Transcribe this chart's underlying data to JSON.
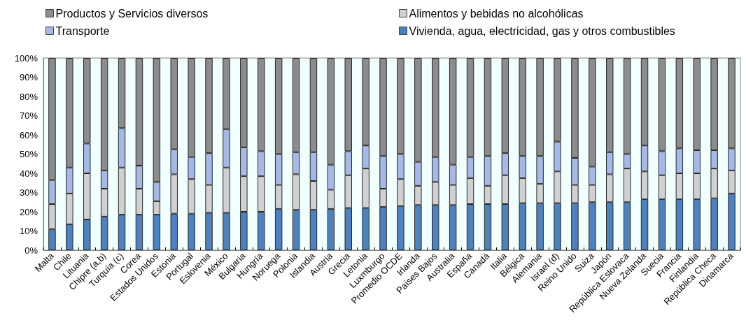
{
  "chart_data": {
    "type": "bar",
    "stacked": true,
    "legend": "top",
    "categories": [
      "Malta",
      "Chile",
      "Lituania",
      "Chipre (a,b)",
      "Turquía (c)",
      "Corea",
      "Estados Unidos",
      "Estonia",
      "Portugal",
      "Eslovenia",
      "México",
      "Bulgaria",
      "Hungría",
      "Noruega",
      "Polonia",
      "Islandia",
      "Austria",
      "Grecia",
      "Letonia",
      "Luxmburgo",
      "Promedio OCDE",
      "Irlanda",
      "Países Bajos",
      "Australia",
      "España",
      "Canadá",
      "Italia",
      "Bélgica",
      "Alemania",
      "Israel (d)",
      "Reino Unido",
      "Suiza",
      "Japón",
      "República Eslovaca",
      "Nueva Zelanda",
      "Suecia",
      "Francia",
      "Finlandia",
      "República Checa",
      "Dinamarca"
    ],
    "series": [
      {
        "name": "Vivienda, agua, electricidad, gas y otros combustibles",
        "color": "#4f81bd",
        "values": [
          11,
          13.5,
          16,
          17.5,
          18.5,
          18.5,
          18.5,
          19,
          19,
          19.5,
          19.5,
          20,
          20,
          21.5,
          21,
          21,
          21.5,
          22,
          22,
          22.5,
          23,
          23.5,
          23.5,
          23.5,
          24,
          24,
          24,
          24.5,
          24.5,
          24.5,
          24.5,
          25,
          25,
          25,
          26.5,
          26.5,
          26.5,
          26.5,
          27,
          29.5
        ]
      },
      {
        "name": "Alimentos y bebidas no alcohólicas",
        "color": "#d0d0d0",
        "values": [
          13,
          16,
          24,
          14.5,
          24.5,
          13.5,
          7,
          20.5,
          18,
          14.5,
          23.5,
          18.5,
          18.5,
          12.5,
          18.5,
          15,
          10,
          17,
          20.5,
          9.5,
          14,
          10,
          12,
          10.5,
          13.5,
          9.5,
          15,
          13,
          10,
          16.5,
          9.5,
          9,
          14.5,
          17.5,
          14.5,
          12.5,
          13.5,
          13.5,
          15.5,
          12
        ]
      },
      {
        "name": "Transporte",
        "color": "#a6b9e6",
        "values": [
          12.5,
          13.5,
          15.5,
          9.5,
          20.5,
          12,
          10,
          13,
          11.5,
          16.5,
          20,
          15,
          13,
          16,
          11.5,
          15,
          13,
          12.5,
          12,
          17,
          13,
          12.5,
          13,
          10.5,
          11,
          15.5,
          11.5,
          11.5,
          14.5,
          15.5,
          14,
          9.5,
          11.5,
          7.5,
          13.5,
          12.5,
          13,
          12,
          9.5,
          11.5
        ]
      },
      {
        "name": "Productos y Servicios diversos",
        "color": "#8c8c8c",
        "values": [
          63.5,
          57,
          44.5,
          58.5,
          36.5,
          56,
          64.5,
          47.5,
          51.5,
          49.5,
          37,
          46.5,
          48.5,
          50,
          49,
          49,
          55.5,
          48.5,
          45.5,
          51,
          50,
          54,
          51.5,
          55.5,
          51.5,
          51,
          49.5,
          51,
          51,
          43.5,
          52,
          56.5,
          49,
          50,
          45.5,
          48.5,
          47,
          48,
          48,
          47
        ]
      }
    ],
    "ylim": [
      0,
      100
    ],
    "yticks": [
      {
        "value": 0,
        "label": "0%"
      },
      {
        "value": 10,
        "label": "10%"
      },
      {
        "value": 20,
        "label": "20%"
      },
      {
        "value": 30,
        "label": "30%"
      },
      {
        "value": 40,
        "label": "40%"
      },
      {
        "value": 50,
        "label": "50%"
      },
      {
        "value": 60,
        "label": "60%"
      },
      {
        "value": 70,
        "label": "70%"
      },
      {
        "value": 80,
        "label": "80%"
      },
      {
        "value": 90,
        "label": "90%"
      },
      {
        "value": 100,
        "label": "100%"
      }
    ]
  }
}
